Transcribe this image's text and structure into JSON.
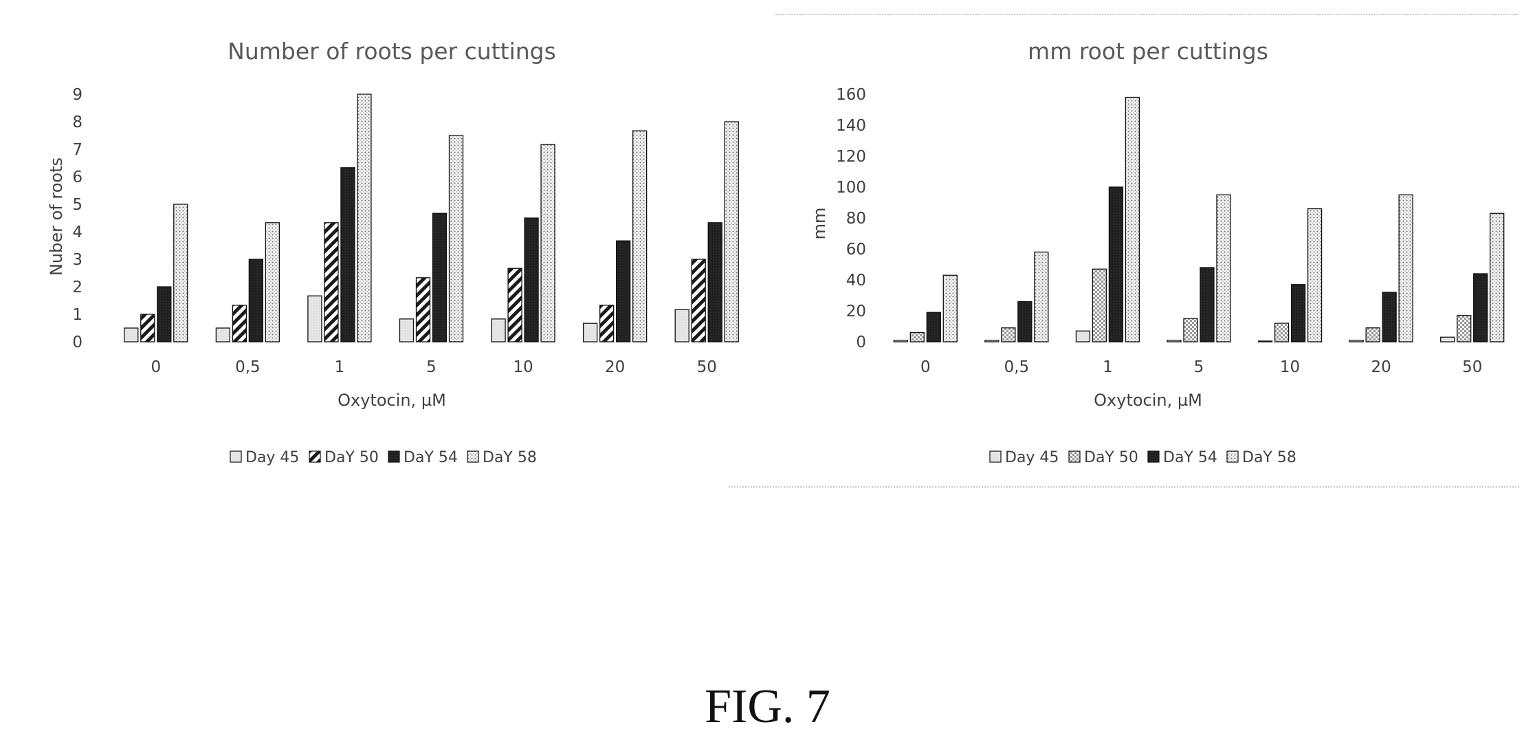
{
  "figure_label": "FIG. 7",
  "chart_data": [
    {
      "type": "bar",
      "title": "Number of roots per cuttings",
      "xlabel": "Oxytocin, µM",
      "ylabel": "Nuber of roots",
      "categories": [
        "0",
        "0,5",
        "1",
        "5",
        "10",
        "20",
        "50"
      ],
      "ylim": [
        0,
        9
      ],
      "yticks": [
        0,
        1,
        2,
        3,
        4,
        5,
        6,
        7,
        8,
        9
      ],
      "legend_position": "bottom",
      "series": [
        {
          "name": "Day 45",
          "pattern": "light",
          "values": [
            0.5,
            0.5,
            1.67,
            0.83,
            0.83,
            0.67,
            1.17
          ]
        },
        {
          "name": "DaY 50",
          "pattern": "diag",
          "values": [
            1.0,
            1.33,
            4.33,
            2.33,
            2.67,
            1.33,
            3.0
          ]
        },
        {
          "name": "DaY 54",
          "pattern": "dark",
          "values": [
            2.0,
            3.0,
            6.33,
            4.67,
            4.5,
            3.67,
            4.33
          ]
        },
        {
          "name": "DaY 58",
          "pattern": "dots",
          "values": [
            5.0,
            4.33,
            9.0,
            7.5,
            7.17,
            7.67,
            8.0
          ]
        }
      ]
    },
    {
      "type": "bar",
      "title": "mm root per cuttings",
      "xlabel": "Oxytocin, µM",
      "ylabel": "mm",
      "categories": [
        "0",
        "0,5",
        "1",
        "5",
        "10",
        "20",
        "50"
      ],
      "ylim": [
        0,
        160
      ],
      "yticks": [
        0,
        20,
        40,
        60,
        80,
        100,
        120,
        140,
        160
      ],
      "legend_position": "bottom",
      "series": [
        {
          "name": "Day 45",
          "pattern": "light",
          "values": [
            1,
            1,
            7,
            1,
            0.5,
            1,
            3
          ]
        },
        {
          "name": "DaY 50",
          "pattern": "checker",
          "values": [
            6,
            9,
            47,
            15,
            12,
            9,
            17
          ]
        },
        {
          "name": "DaY 54",
          "pattern": "dark",
          "values": [
            19,
            26,
            100,
            48,
            37,
            32,
            44
          ]
        },
        {
          "name": "DaY 58",
          "pattern": "dots",
          "values": [
            43,
            58,
            158,
            95,
            86,
            95,
            83
          ]
        }
      ]
    }
  ]
}
